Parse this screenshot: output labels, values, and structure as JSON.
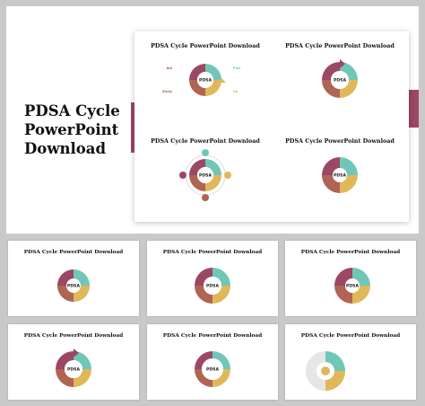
{
  "hero": {
    "title_line1": "PDSA Cycle",
    "title_line2": "PowerPoint",
    "title_line3": "Download"
  },
  "slide_title": "PDSA Cycle PowerPoint Download",
  "center_label": "PDSA",
  "stages": {
    "plan": "Plan",
    "do": "Do",
    "study": "Study",
    "act": "Act"
  },
  "desc_text": "Strengthen our internal barrier to give a competitive advantage.",
  "colors": {
    "teal": "#6fc7b8",
    "mustard": "#e0b85a",
    "brown": "#b06454",
    "plum": "#9c4763",
    "accent_bar": "#9c4763"
  }
}
